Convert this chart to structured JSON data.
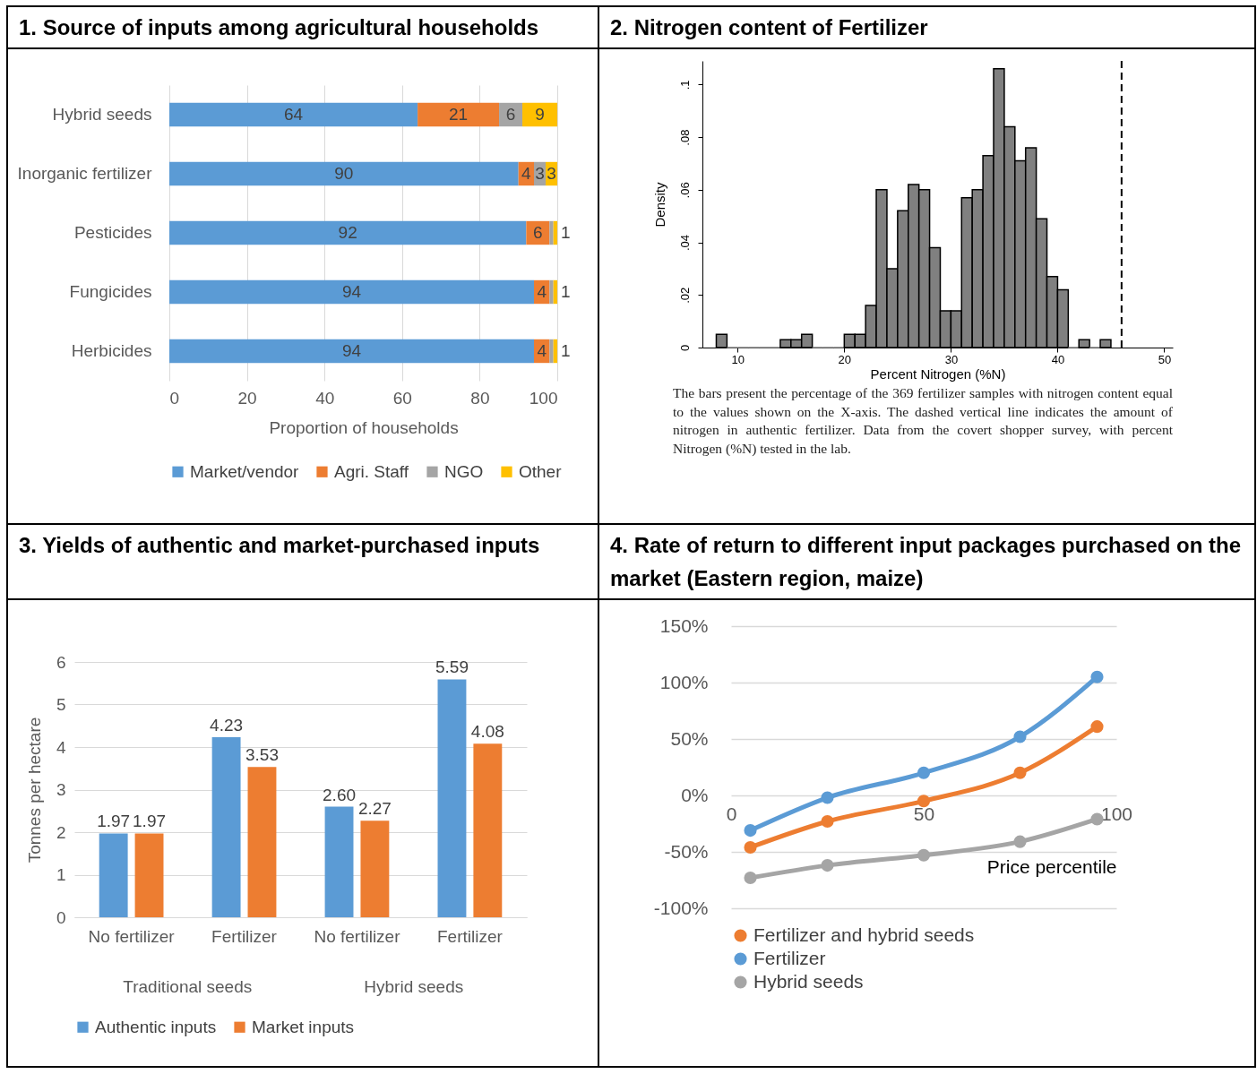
{
  "chart_data": [
    {
      "type": "bar",
      "title": "1. Source of inputs among agricultural households",
      "orientation": "horizontal",
      "stacked": true,
      "categories": [
        "Hybrid seeds",
        "Inorganic fertilizer",
        "Pesticides",
        "Fungicides",
        "Herbicides"
      ],
      "xlabel": "Proportion of households",
      "xlim": [
        0,
        100
      ],
      "xticks": [
        0,
        20,
        40,
        60,
        80,
        100
      ],
      "grid": "x",
      "legend": "bottom",
      "series": [
        {
          "name": "Market/vendor",
          "color": "#5b9bd5",
          "values": [
            64,
            90,
            92,
            94,
            94
          ],
          "value_labels": [
            "64",
            "90",
            "92",
            "94",
            "94"
          ]
        },
        {
          "name": "Agri. Staff",
          "color": "#ed7d31",
          "values": [
            21,
            4,
            6,
            4,
            4
          ],
          "value_labels": [
            "21",
            "4",
            "6",
            "4",
            "4"
          ]
        },
        {
          "name": "NGO",
          "color": "#a5a5a5",
          "values": [
            6,
            3,
            1,
            1,
            1
          ],
          "value_labels": [
            "6",
            "3",
            "1",
            "1",
            "1"
          ]
        },
        {
          "name": "Other",
          "color": "#ffc000",
          "values": [
            9,
            3,
            1,
            1,
            1
          ],
          "value_labels": [
            "9",
            "3",
            null,
            null,
            null
          ]
        }
      ]
    },
    {
      "type": "histogram",
      "title": "2. Nitrogen content of Fertilizer",
      "xlabel": "Percent Nitrogen (%N)",
      "ylabel": "Density",
      "color": "#808080",
      "bins": [
        8,
        9,
        10,
        11,
        12,
        13,
        14,
        15,
        16,
        17,
        18,
        19,
        20,
        21,
        22,
        23,
        24,
        25,
        26,
        27,
        28,
        29,
        30,
        31,
        32,
        33,
        34,
        35,
        36,
        37,
        38,
        39,
        40,
        41,
        42,
        43,
        44,
        45
      ],
      "values": [
        0.005,
        0,
        0,
        0,
        0,
        0,
        0.003,
        0.003,
        0.005,
        0,
        0,
        0,
        0.005,
        0.005,
        0.016,
        0.06,
        0.03,
        0.052,
        0.062,
        0.06,
        0.038,
        0.014,
        0.014,
        0.057,
        0.06,
        0.073,
        0.106,
        0.084,
        0.071,
        0.076,
        0.049,
        0.027,
        0.022,
        0,
        0.003,
        0,
        0.003
      ],
      "xlim": [
        6.7,
        50.8
      ],
      "xticks": [
        10,
        20,
        30,
        40,
        50
      ],
      "ylim": [
        0,
        0.109
      ],
      "yticks": [
        0,
        {
          "value": 0.02,
          "label": ".02"
        },
        {
          "value": 0.04,
          "label": ".04"
        },
        {
          "value": 0.06,
          "label": ".06"
        },
        {
          "value": 0.08,
          "label": ".08"
        },
        {
          "value": 0.1,
          "label": ".1"
        }
      ],
      "ref_lines": [
        {
          "axis": "x",
          "value": 46,
          "color": "#000000",
          "line_style": "dashed"
        }
      ],
      "annotations": [
        "The bars present the percentage of the 369 fertilizer samples with nitrogen content equal to the values shown on the X-axis. The dashed vertical line indicates the amount of nitrogen in authentic fertilizer. Data from the covert shopper survey, with percent Nitrogen (%N) tested in the lab."
      ]
    },
    {
      "type": "bar",
      "title": "3. Yields of authentic and market-purchased inputs",
      "categories": [
        "No fertilizer",
        "Fertilizer",
        "No fertilizer",
        "Fertilizer"
      ],
      "annotations": [
        "Traditional seeds",
        "Hybrid seeds"
      ],
      "ylabel": "Tonnes per hectare",
      "ylim": [
        0,
        6
      ],
      "yticks": [
        0,
        1,
        2,
        3,
        4,
        5,
        6
      ],
      "grid": "y",
      "legend": "bottom",
      "series": [
        {
          "name": "Authentic inputs",
          "color": "#5b9bd5",
          "values": [
            1.97,
            4.23,
            2.6,
            5.59
          ],
          "value_labels": [
            "1.97",
            "4.23",
            "2.60",
            "5.59"
          ]
        },
        {
          "name": "Market inputs",
          "color": "#ed7d31",
          "values": [
            1.97,
            3.53,
            2.27,
            4.08
          ],
          "value_labels": [
            "1.97",
            "3.53",
            "2.27",
            "4.08"
          ]
        }
      ]
    },
    {
      "type": "line",
      "title": "4. Rate of return to different input packages purchased on the market (Eastern region, maize)",
      "xlabel": "Price percentile",
      "x": [
        5,
        25,
        50,
        75,
        95
      ],
      "xlim": [
        0,
        100
      ],
      "xticks": [
        0,
        50,
        100
      ],
      "ylim": [
        -100,
        150
      ],
      "yticks": [
        {
          "value": -100,
          "label": "-100%"
        },
        {
          "value": -50,
          "label": "-50%"
        },
        {
          "value": 0,
          "label": "0%"
        },
        {
          "value": 50,
          "label": "50%"
        },
        {
          "value": 100,
          "label": "100%"
        },
        {
          "value": 150,
          "label": "150%"
        }
      ],
      "grid": "y",
      "legend": "bottom",
      "marker": "circle",
      "series": [
        {
          "name": "Fertilizer and hybrid seeds",
          "color": "#ed7d31",
          "values": [
            -46,
            -23,
            -5,
            20,
            61
          ]
        },
        {
          "name": "Fertilizer",
          "color": "#5b9bd5",
          "values": [
            -31,
            -2,
            20,
            52,
            105
          ]
        },
        {
          "name": "Hybrid seeds",
          "color": "#a5a5a5",
          "values": [
            -73,
            -62,
            -53,
            -41,
            -21
          ]
        }
      ]
    }
  ]
}
